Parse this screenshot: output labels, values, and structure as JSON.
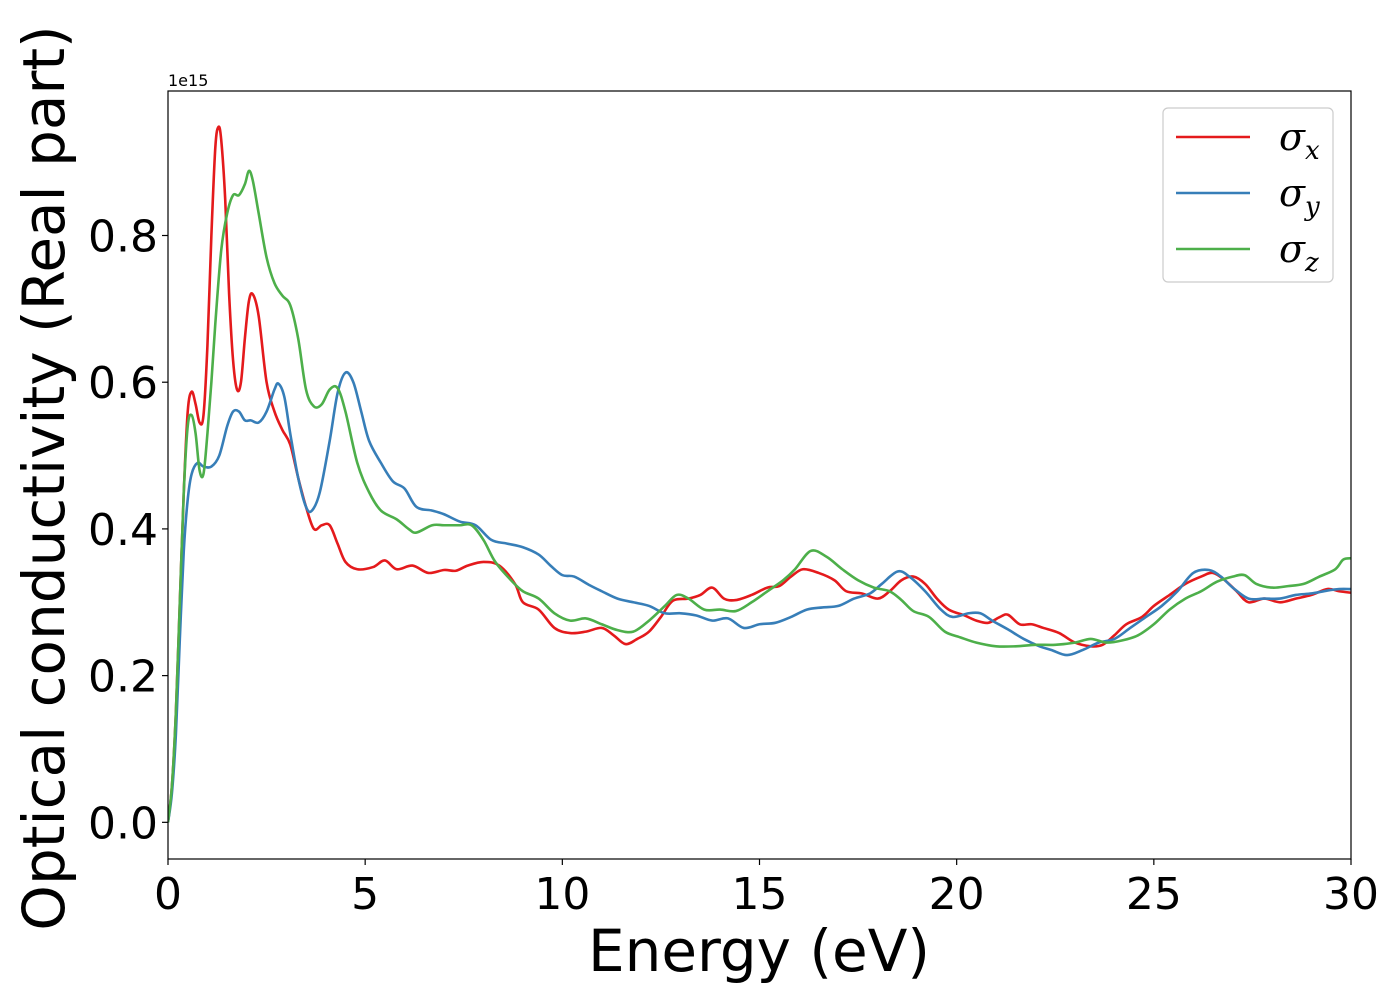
{
  "chart_data": {
    "type": "line",
    "xlabel": "Energy (eV)",
    "ylabel": "Optical conductivity (Real part)",
    "y_offset_label": "1e15",
    "xlim": [
      0,
      30
    ],
    "ylim": [
      -0.05,
      0.997
    ],
    "x_ticks": [
      0,
      5,
      10,
      15,
      20,
      25,
      30
    ],
    "x_tick_labels": [
      "0",
      "5",
      "10",
      "15",
      "20",
      "25",
      "30"
    ],
    "y_ticks": [
      0.0,
      0.2,
      0.4,
      0.6,
      0.8
    ],
    "y_tick_labels": [
      "0.0",
      "0.2",
      "0.4",
      "0.6",
      "0.8"
    ],
    "grid": false,
    "legend_position": "top-right",
    "series": [
      {
        "symbol": "σ",
        "subscript": "x",
        "color": "#e41a1c",
        "points": [
          [
            0,
            0.0
          ],
          [
            0.1,
            0.05
          ],
          [
            0.2,
            0.15
          ],
          [
            0.3,
            0.3
          ],
          [
            0.4,
            0.45
          ],
          [
            0.5,
            0.56
          ],
          [
            0.6,
            0.587
          ],
          [
            0.7,
            0.57
          ],
          [
            0.8,
            0.545
          ],
          [
            0.9,
            0.555
          ],
          [
            1.0,
            0.65
          ],
          [
            1.1,
            0.8
          ],
          [
            1.2,
            0.92
          ],
          [
            1.28,
            0.948
          ],
          [
            1.35,
            0.93
          ],
          [
            1.45,
            0.85
          ],
          [
            1.55,
            0.72
          ],
          [
            1.65,
            0.63
          ],
          [
            1.75,
            0.59
          ],
          [
            1.85,
            0.6
          ],
          [
            1.95,
            0.66
          ],
          [
            2.05,
            0.71
          ],
          [
            2.15,
            0.72
          ],
          [
            2.3,
            0.69
          ],
          [
            2.5,
            0.6
          ],
          [
            2.7,
            0.56
          ],
          [
            2.9,
            0.535
          ],
          [
            3.1,
            0.515
          ],
          [
            3.3,
            0.47
          ],
          [
            3.5,
            0.43
          ],
          [
            3.7,
            0.4
          ],
          [
            3.9,
            0.405
          ],
          [
            4.1,
            0.405
          ],
          [
            4.3,
            0.38
          ],
          [
            4.5,
            0.355
          ],
          [
            4.8,
            0.345
          ],
          [
            5.2,
            0.348
          ],
          [
            5.5,
            0.357
          ],
          [
            5.8,
            0.345
          ],
          [
            6.2,
            0.35
          ],
          [
            6.6,
            0.34
          ],
          [
            7.0,
            0.344
          ],
          [
            7.3,
            0.343
          ],
          [
            7.6,
            0.35
          ],
          [
            8.0,
            0.355
          ],
          [
            8.4,
            0.35
          ],
          [
            8.8,
            0.325
          ],
          [
            9.0,
            0.3
          ],
          [
            9.4,
            0.29
          ],
          [
            9.8,
            0.265
          ],
          [
            10.2,
            0.258
          ],
          [
            10.6,
            0.26
          ],
          [
            11.0,
            0.265
          ],
          [
            11.3,
            0.255
          ],
          [
            11.6,
            0.243
          ],
          [
            11.9,
            0.25
          ],
          [
            12.2,
            0.26
          ],
          [
            12.5,
            0.28
          ],
          [
            12.8,
            0.302
          ],
          [
            13.2,
            0.305
          ],
          [
            13.5,
            0.31
          ],
          [
            13.8,
            0.32
          ],
          [
            14.1,
            0.305
          ],
          [
            14.4,
            0.303
          ],
          [
            14.8,
            0.31
          ],
          [
            15.2,
            0.32
          ],
          [
            15.5,
            0.322
          ],
          [
            15.8,
            0.335
          ],
          [
            16.1,
            0.345
          ],
          [
            16.5,
            0.34
          ],
          [
            16.9,
            0.33
          ],
          [
            17.2,
            0.315
          ],
          [
            17.6,
            0.312
          ],
          [
            18.0,
            0.305
          ],
          [
            18.3,
            0.315
          ],
          [
            18.6,
            0.33
          ],
          [
            18.9,
            0.335
          ],
          [
            19.2,
            0.325
          ],
          [
            19.5,
            0.305
          ],
          [
            19.8,
            0.29
          ],
          [
            20.2,
            0.282
          ],
          [
            20.5,
            0.275
          ],
          [
            20.8,
            0.272
          ],
          [
            21.1,
            0.28
          ],
          [
            21.3,
            0.283
          ],
          [
            21.6,
            0.27
          ],
          [
            21.9,
            0.27
          ],
          [
            22.2,
            0.265
          ],
          [
            22.6,
            0.258
          ],
          [
            23.0,
            0.245
          ],
          [
            23.4,
            0.24
          ],
          [
            23.7,
            0.242
          ],
          [
            24.0,
            0.255
          ],
          [
            24.3,
            0.27
          ],
          [
            24.7,
            0.28
          ],
          [
            25.0,
            0.295
          ],
          [
            25.4,
            0.31
          ],
          [
            25.8,
            0.325
          ],
          [
            26.2,
            0.335
          ],
          [
            26.5,
            0.34
          ],
          [
            26.8,
            0.33
          ],
          [
            27.1,
            0.315
          ],
          [
            27.4,
            0.3
          ],
          [
            27.8,
            0.305
          ],
          [
            28.2,
            0.3
          ],
          [
            28.6,
            0.305
          ],
          [
            29.0,
            0.31
          ],
          [
            29.4,
            0.318
          ],
          [
            29.7,
            0.315
          ],
          [
            30.0,
            0.313
          ]
        ]
      },
      {
        "symbol": "σ",
        "subscript": "y",
        "color": "#377eb8",
        "points": [
          [
            0,
            0.0
          ],
          [
            0.1,
            0.04
          ],
          [
            0.2,
            0.12
          ],
          [
            0.3,
            0.25
          ],
          [
            0.4,
            0.37
          ],
          [
            0.5,
            0.44
          ],
          [
            0.6,
            0.475
          ],
          [
            0.75,
            0.49
          ],
          [
            0.9,
            0.485
          ],
          [
            1.1,
            0.485
          ],
          [
            1.3,
            0.5
          ],
          [
            1.5,
            0.54
          ],
          [
            1.65,
            0.56
          ],
          [
            1.8,
            0.56
          ],
          [
            1.95,
            0.548
          ],
          [
            2.1,
            0.548
          ],
          [
            2.3,
            0.545
          ],
          [
            2.5,
            0.56
          ],
          [
            2.7,
            0.59
          ],
          [
            2.8,
            0.598
          ],
          [
            2.95,
            0.58
          ],
          [
            3.1,
            0.53
          ],
          [
            3.3,
            0.47
          ],
          [
            3.5,
            0.43
          ],
          [
            3.65,
            0.425
          ],
          [
            3.85,
            0.45
          ],
          [
            4.1,
            0.52
          ],
          [
            4.3,
            0.585
          ],
          [
            4.5,
            0.613
          ],
          [
            4.7,
            0.6
          ],
          [
            4.9,
            0.56
          ],
          [
            5.1,
            0.52
          ],
          [
            5.4,
            0.49
          ],
          [
            5.7,
            0.465
          ],
          [
            6.0,
            0.455
          ],
          [
            6.3,
            0.43
          ],
          [
            6.7,
            0.425
          ],
          [
            7.0,
            0.42
          ],
          [
            7.4,
            0.41
          ],
          [
            7.8,
            0.405
          ],
          [
            8.2,
            0.385
          ],
          [
            8.6,
            0.38
          ],
          [
            9.0,
            0.375
          ],
          [
            9.4,
            0.365
          ],
          [
            9.7,
            0.35
          ],
          [
            10.0,
            0.337
          ],
          [
            10.3,
            0.335
          ],
          [
            10.7,
            0.323
          ],
          [
            11.0,
            0.315
          ],
          [
            11.4,
            0.305
          ],
          [
            11.8,
            0.3
          ],
          [
            12.2,
            0.295
          ],
          [
            12.6,
            0.285
          ],
          [
            13.0,
            0.285
          ],
          [
            13.4,
            0.282
          ],
          [
            13.8,
            0.275
          ],
          [
            14.2,
            0.278
          ],
          [
            14.6,
            0.265
          ],
          [
            15.0,
            0.27
          ],
          [
            15.4,
            0.272
          ],
          [
            15.8,
            0.28
          ],
          [
            16.2,
            0.29
          ],
          [
            16.6,
            0.293
          ],
          [
            17.0,
            0.295
          ],
          [
            17.4,
            0.305
          ],
          [
            17.8,
            0.312
          ],
          [
            18.1,
            0.325
          ],
          [
            18.5,
            0.342
          ],
          [
            18.8,
            0.335
          ],
          [
            19.2,
            0.315
          ],
          [
            19.6,
            0.29
          ],
          [
            19.9,
            0.28
          ],
          [
            20.3,
            0.285
          ],
          [
            20.6,
            0.285
          ],
          [
            20.9,
            0.275
          ],
          [
            21.3,
            0.263
          ],
          [
            21.7,
            0.25
          ],
          [
            22.1,
            0.24
          ],
          [
            22.4,
            0.235
          ],
          [
            22.8,
            0.228
          ],
          [
            23.2,
            0.235
          ],
          [
            23.6,
            0.245
          ],
          [
            24.0,
            0.25
          ],
          [
            24.4,
            0.265
          ],
          [
            24.8,
            0.28
          ],
          [
            25.2,
            0.295
          ],
          [
            25.6,
            0.315
          ],
          [
            26.0,
            0.34
          ],
          [
            26.4,
            0.344
          ],
          [
            26.7,
            0.335
          ],
          [
            27.0,
            0.32
          ],
          [
            27.4,
            0.305
          ],
          [
            27.8,
            0.305
          ],
          [
            28.2,
            0.305
          ],
          [
            28.6,
            0.31
          ],
          [
            29.0,
            0.312
          ],
          [
            29.4,
            0.316
          ],
          [
            29.7,
            0.318
          ],
          [
            30.0,
            0.318
          ]
        ]
      },
      {
        "symbol": "σ",
        "subscript": "z",
        "color": "#4daf4a",
        "points": [
          [
            0,
            0.0
          ],
          [
            0.1,
            0.05
          ],
          [
            0.2,
            0.15
          ],
          [
            0.3,
            0.3
          ],
          [
            0.4,
            0.45
          ],
          [
            0.5,
            0.54
          ],
          [
            0.6,
            0.555
          ],
          [
            0.7,
            0.53
          ],
          [
            0.8,
            0.48
          ],
          [
            0.9,
            0.475
          ],
          [
            1.0,
            0.53
          ],
          [
            1.1,
            0.6
          ],
          [
            1.2,
            0.68
          ],
          [
            1.35,
            0.78
          ],
          [
            1.5,
            0.83
          ],
          [
            1.65,
            0.855
          ],
          [
            1.8,
            0.855
          ],
          [
            1.95,
            0.87
          ],
          [
            2.05,
            0.888
          ],
          [
            2.15,
            0.875
          ],
          [
            2.3,
            0.83
          ],
          [
            2.5,
            0.77
          ],
          [
            2.7,
            0.735
          ],
          [
            2.9,
            0.718
          ],
          [
            3.1,
            0.705
          ],
          [
            3.3,
            0.66
          ],
          [
            3.5,
            0.59
          ],
          [
            3.7,
            0.567
          ],
          [
            3.9,
            0.57
          ],
          [
            4.1,
            0.59
          ],
          [
            4.3,
            0.592
          ],
          [
            4.5,
            0.56
          ],
          [
            4.8,
            0.49
          ],
          [
            5.1,
            0.45
          ],
          [
            5.4,
            0.425
          ],
          [
            5.8,
            0.413
          ],
          [
            6.1,
            0.4
          ],
          [
            6.3,
            0.395
          ],
          [
            6.7,
            0.405
          ],
          [
            7.0,
            0.405
          ],
          [
            7.4,
            0.405
          ],
          [
            7.7,
            0.405
          ],
          [
            8.0,
            0.385
          ],
          [
            8.3,
            0.355
          ],
          [
            8.7,
            0.33
          ],
          [
            9.0,
            0.315
          ],
          [
            9.4,
            0.305
          ],
          [
            9.8,
            0.285
          ],
          [
            10.2,
            0.275
          ],
          [
            10.6,
            0.278
          ],
          [
            11.0,
            0.27
          ],
          [
            11.4,
            0.262
          ],
          [
            11.8,
            0.26
          ],
          [
            12.2,
            0.275
          ],
          [
            12.6,
            0.295
          ],
          [
            12.9,
            0.31
          ],
          [
            13.2,
            0.305
          ],
          [
            13.6,
            0.29
          ],
          [
            14.0,
            0.29
          ],
          [
            14.4,
            0.288
          ],
          [
            14.8,
            0.3
          ],
          [
            15.2,
            0.315
          ],
          [
            15.6,
            0.33
          ],
          [
            15.9,
            0.345
          ],
          [
            16.3,
            0.37
          ],
          [
            16.7,
            0.362
          ],
          [
            17.1,
            0.345
          ],
          [
            17.5,
            0.33
          ],
          [
            17.9,
            0.32
          ],
          [
            18.3,
            0.315
          ],
          [
            18.6,
            0.303
          ],
          [
            18.9,
            0.288
          ],
          [
            19.3,
            0.28
          ],
          [
            19.7,
            0.26
          ],
          [
            20.1,
            0.252
          ],
          [
            20.5,
            0.245
          ],
          [
            21.0,
            0.24
          ],
          [
            21.5,
            0.24
          ],
          [
            22.0,
            0.242
          ],
          [
            22.5,
            0.242
          ],
          [
            23.0,
            0.245
          ],
          [
            23.4,
            0.25
          ],
          [
            23.8,
            0.245
          ],
          [
            24.2,
            0.248
          ],
          [
            24.6,
            0.255
          ],
          [
            25.0,
            0.27
          ],
          [
            25.4,
            0.29
          ],
          [
            25.8,
            0.305
          ],
          [
            26.2,
            0.315
          ],
          [
            26.6,
            0.328
          ],
          [
            27.0,
            0.335
          ],
          [
            27.3,
            0.337
          ],
          [
            27.6,
            0.325
          ],
          [
            28.0,
            0.32
          ],
          [
            28.4,
            0.322
          ],
          [
            28.8,
            0.325
          ],
          [
            29.2,
            0.335
          ],
          [
            29.6,
            0.345
          ],
          [
            29.8,
            0.358
          ],
          [
            30.0,
            0.36
          ]
        ]
      }
    ]
  }
}
